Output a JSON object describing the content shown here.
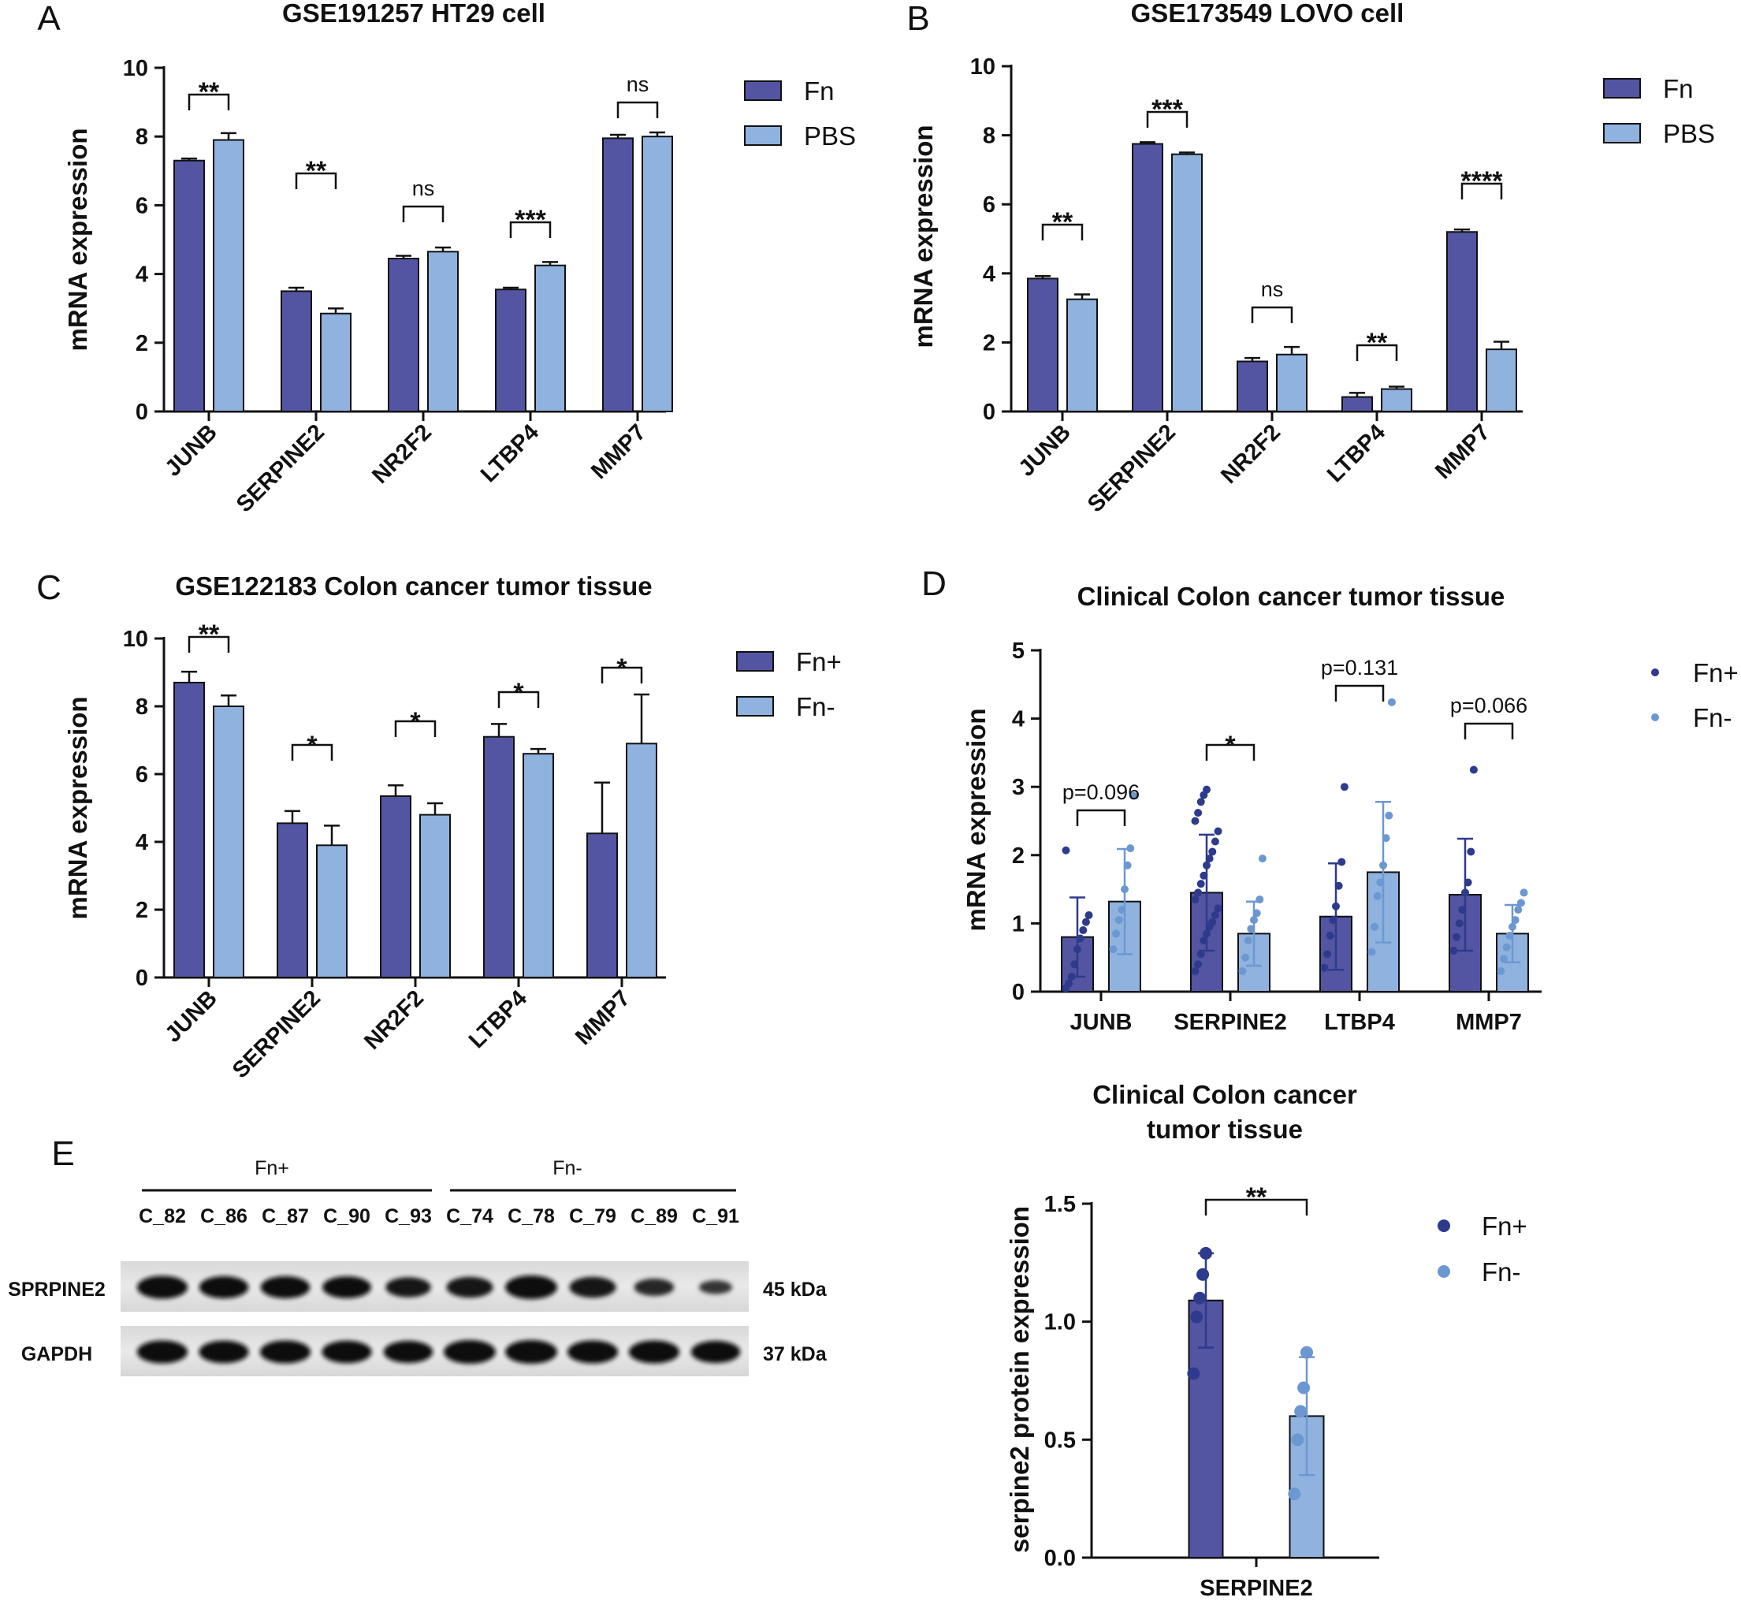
{
  "colors": {
    "fn": "#5355a2",
    "pbs": "#8fb2df",
    "axis": "#111111",
    "dot_pos": "#2e3a8c",
    "dot_neg": "#6c98d2"
  },
  "chart_data": [
    {
      "id": "A",
      "letter": "A",
      "type": "bar",
      "title": "GSE191257 HT29 cell",
      "ylabel": "mRNA expression",
      "xlabel": "",
      "ylim": [
        0,
        10
      ],
      "yticks": [
        "0",
        "2",
        "4",
        "6",
        "8",
        "10"
      ],
      "categories": [
        "JUNB",
        "SERPINE2",
        "NR2F2",
        "LTBP4",
        "MMP7"
      ],
      "series": [
        {
          "name": "Fn",
          "values": [
            7.3,
            3.5,
            4.45,
            3.55,
            7.95
          ],
          "errors": [
            0.06,
            0.1,
            0.08,
            0.05,
            0.1
          ]
        },
        {
          "name": "PBS",
          "values": [
            7.9,
            2.85,
            4.65,
            4.25,
            8.0
          ],
          "errors": [
            0.2,
            0.15,
            0.12,
            0.1,
            0.12
          ]
        }
      ],
      "significance": [
        "**",
        "**",
        "ns",
        "***",
        "ns"
      ],
      "legend": [
        "Fn",
        "PBS"
      ]
    },
    {
      "id": "B",
      "letter": "B",
      "type": "bar",
      "title": "GSE173549 LOVO cell",
      "ylabel": "mRNA expression",
      "xlabel": "",
      "ylim": [
        0,
        10
      ],
      "yticks": [
        "0",
        "2",
        "4",
        "6",
        "8",
        "10"
      ],
      "categories": [
        "JUNB",
        "SERPINE2",
        "NR2F2",
        "LTBP4",
        "MMP7"
      ],
      "series": [
        {
          "name": "Fn",
          "values": [
            3.85,
            7.75,
            1.45,
            0.42,
            5.2
          ],
          "errors": [
            0.07,
            0.05,
            0.1,
            0.12,
            0.07
          ]
        },
        {
          "name": "PBS",
          "values": [
            3.25,
            7.45,
            1.65,
            0.65,
            1.8
          ],
          "errors": [
            0.14,
            0.05,
            0.22,
            0.07,
            0.22
          ]
        }
      ],
      "significance": [
        "**",
        "***",
        "ns",
        "**",
        "****"
      ],
      "legend": [
        "Fn",
        "PBS"
      ]
    },
    {
      "id": "C",
      "letter": "C",
      "type": "bar",
      "title": "GSE122183 Colon cancer tumor tissue",
      "ylabel": "mRNA expression",
      "xlabel": "",
      "ylim": [
        0,
        10
      ],
      "yticks": [
        "0",
        "2",
        "4",
        "6",
        "8",
        "10"
      ],
      "categories": [
        "JUNB",
        "SERPINE2",
        "NR2F2",
        "LTBP4",
        "MMP7"
      ],
      "series": [
        {
          "name": "Fn+",
          "values": [
            8.7,
            4.55,
            5.35,
            7.1,
            4.25
          ],
          "errors": [
            0.32,
            0.36,
            0.32,
            0.38,
            1.5
          ]
        },
        {
          "name": "Fn-",
          "values": [
            8.0,
            3.9,
            4.8,
            6.6,
            6.9
          ],
          "errors": [
            0.32,
            0.58,
            0.34,
            0.14,
            1.45
          ]
        }
      ],
      "significance": [
        "**",
        "*",
        "*",
        "*",
        "*"
      ],
      "legend": [
        "Fn+",
        "Fn-"
      ]
    },
    {
      "id": "D",
      "letter": "D",
      "type": "bar",
      "title": "Clinical Colon cancer tumor tissue",
      "ylabel": "mRNA expression",
      "xlabel": "",
      "ylim": [
        0,
        5
      ],
      "yticks": [
        "0",
        "1",
        "2",
        "3",
        "4",
        "5"
      ],
      "categories": [
        "JUNB",
        "SERPINE2",
        "LTBP4",
        "MMP7"
      ],
      "series": [
        {
          "name": "Fn+",
          "values": [
            0.8,
            1.45,
            1.1,
            1.42
          ],
          "errors": [
            0.58,
            0.85,
            0.78,
            0.82
          ],
          "points": [
            [
              0.05,
              0.12,
              0.22,
              0.4,
              0.62,
              0.78,
              0.9,
              1.02,
              1.12,
              2.07
            ],
            [
              0.3,
              0.4,
              0.55,
              0.75,
              0.85,
              0.95,
              1.02,
              1.12,
              1.22,
              1.35,
              1.45,
              1.58,
              1.7,
              1.85,
              1.95,
              2.05,
              2.2,
              2.35,
              2.5,
              2.62,
              2.78,
              2.88,
              2.96
            ],
            [
              0.35,
              0.55,
              0.82,
              1.05,
              1.25,
              1.55,
              1.9,
              3.0
            ],
            [
              0.6,
              0.8,
              1.0,
              1.2,
              1.45,
              1.6,
              2.05,
              3.25
            ]
          ]
        },
        {
          "name": "Fn-",
          "values": [
            1.32,
            0.85,
            1.75,
            0.85
          ],
          "errors": [
            0.77,
            0.47,
            1.03,
            0.42
          ],
          "points": [
            [
              0.62,
              0.85,
              1.05,
              1.2,
              1.5,
              1.85,
              2.1,
              2.87
            ],
            [
              0.3,
              0.5,
              0.75,
              0.92,
              1.05,
              1.15,
              1.35,
              1.95
            ],
            [
              0.58,
              0.95,
              1.4,
              1.6,
              1.85,
              2.25,
              2.58,
              4.24
            ],
            [
              0.3,
              0.48,
              0.65,
              0.82,
              0.95,
              1.05,
              1.2,
              1.3,
              1.45
            ]
          ]
        }
      ],
      "significance": [
        "p=0.096",
        "*",
        "p=0.131",
        "p=0.066"
      ],
      "legend": [
        "Fn+",
        "Fn-"
      ]
    },
    {
      "id": "F",
      "letter": "",
      "type": "bar",
      "title": "Clinical Colon cancer",
      "title2": "tumor tissue",
      "ylabel": "serpine2 protein expression",
      "xlabel": "",
      "ylim": [
        0,
        1.5
      ],
      "yticks": [
        "0.0",
        "0.5",
        "1.0",
        "1.5"
      ],
      "categories": [
        "SERPINE2"
      ],
      "series": [
        {
          "name": "Fn+",
          "values": [
            1.09
          ],
          "errors": [
            0.2
          ],
          "points": [
            [
              0.78,
              1.02,
              1.1,
              1.2,
              1.29
            ]
          ]
        },
        {
          "name": "Fn-",
          "values": [
            0.6
          ],
          "errors": [
            0.25
          ],
          "points": [
            [
              0.27,
              0.5,
              0.62,
              0.72,
              0.87
            ]
          ]
        }
      ],
      "significance": [
        "**"
      ],
      "legend": [
        "Fn+",
        "Fn-"
      ]
    }
  ],
  "blot": {
    "letter": "E",
    "group_pos": "Fn+",
    "group_neg": "Fn-",
    "lanes": [
      "C_82",
      "C_86",
      "C_87",
      "C_90",
      "C_93",
      "C_74",
      "C_78",
      "C_79",
      "C_89",
      "C_91"
    ],
    "rows": [
      {
        "label": "SPRPINE2",
        "size": "45 kDa",
        "intensity": [
          0.95,
          0.9,
          0.9,
          0.88,
          0.75,
          0.8,
          1.0,
          0.8,
          0.55,
          0.3
        ]
      },
      {
        "label": "GAPDH",
        "size": "37 kDa",
        "intensity": [
          0.95,
          0.92,
          0.95,
          0.92,
          0.9,
          1.0,
          1.0,
          0.95,
          0.95,
          0.9
        ]
      }
    ]
  }
}
